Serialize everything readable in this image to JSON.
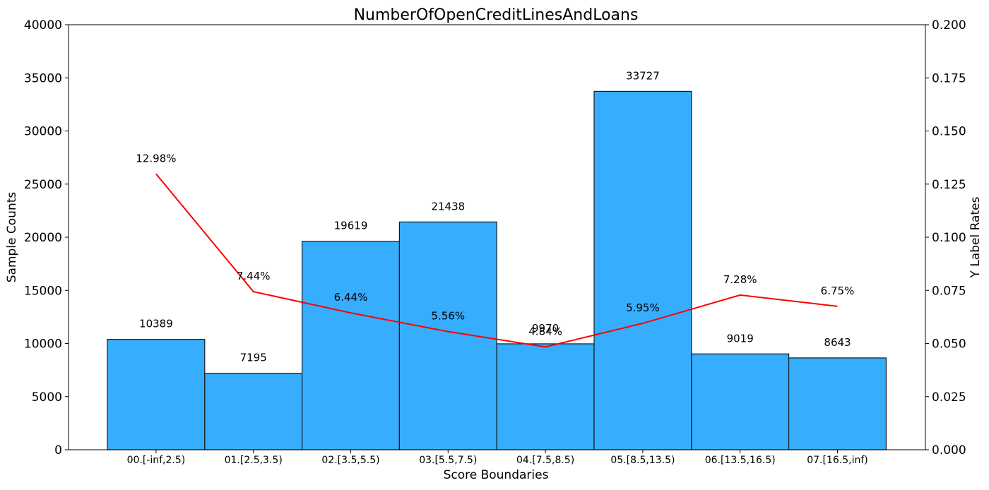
{
  "chart_data": {
    "type": "bar",
    "title": "NumberOfOpenCreditLinesAndLoans",
    "xlabel": "Score Boundaries",
    "ylabel": "Sample Counts",
    "y2label": "Y Label Rates",
    "categories": [
      "00.[-inf,2.5)",
      "01.[2.5,3.5)",
      "02.[3.5,5.5)",
      "03.[5.5,7.5)",
      "04.[7.5,8.5)",
      "05.[8.5,13.5)",
      "06.[13.5,16.5)",
      "07.[16.5,inf)"
    ],
    "values": [
      10389,
      7195,
      19619,
      21438,
      9970,
      33727,
      9019,
      8643
    ],
    "value_labels": [
      "10389",
      "7195",
      "19619",
      "21438",
      "9970",
      "33727",
      "9019",
      "8643"
    ],
    "line_values": [
      0.1298,
      0.0744,
      0.0644,
      0.0556,
      0.0484,
      0.0595,
      0.0728,
      0.0675
    ],
    "line_labels": [
      "12.98%",
      "7.44%",
      "6.44%",
      "5.56%",
      "4.84%",
      "5.95%",
      "7.28%",
      "6.75%"
    ],
    "ylim": [
      0,
      40000
    ],
    "y2lim": [
      0,
      0.2
    ],
    "yticks": [
      "0",
      "5000",
      "10000",
      "15000",
      "20000",
      "25000",
      "30000",
      "35000",
      "40000"
    ],
    "ytick_values": [
      0,
      5000,
      10000,
      15000,
      20000,
      25000,
      30000,
      35000,
      40000
    ],
    "y2ticks": [
      "0.000",
      "0.025",
      "0.050",
      "0.075",
      "0.100",
      "0.125",
      "0.150",
      "0.175",
      "0.200"
    ],
    "y2tick_values": [
      0,
      0.025,
      0.05,
      0.075,
      0.1,
      0.125,
      0.15,
      0.175,
      0.2
    ],
    "grid": false,
    "colors": {
      "bar": "#36adfd",
      "bar_edge": "#1a1a1a",
      "line": "#ff0000"
    }
  }
}
